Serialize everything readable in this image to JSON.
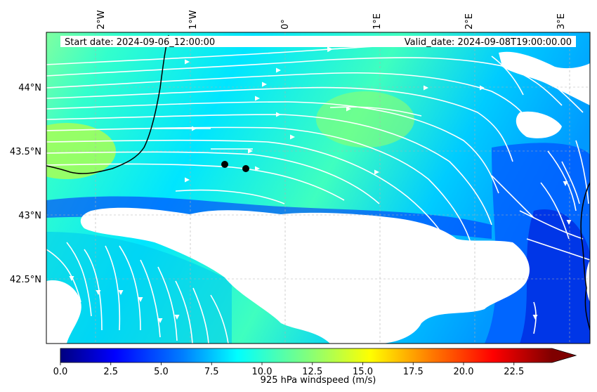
{
  "header": {
    "start_date": "Start date: 2024-09-06_12:00:00",
    "valid_date": "Valid_date: 2024-09-08T19:00:00.00"
  },
  "map": {
    "lon_ticks": [
      "2°W",
      "1°W",
      "0°",
      "1°E",
      "2°E",
      "3°E"
    ],
    "lat_ticks": [
      "44°N",
      "43.5°N",
      "43°N",
      "42.5°N"
    ],
    "markers": [
      {
        "name": "point-a",
        "color": "#000000"
      },
      {
        "name": "point-b",
        "color": "#000000"
      }
    ],
    "streamline_color": "#ffffff",
    "coastline_color": "#000000"
  },
  "colorbar": {
    "label": "925 hPa windspeed (m/s)",
    "ticks": [
      "0.0",
      "2.5",
      "5.0",
      "7.5",
      "10.0",
      "12.5",
      "15.0",
      "17.5",
      "20.0",
      "22.5"
    ],
    "colormap": "jet",
    "extend": "max",
    "colors": [
      "#00007f",
      "#0000ff",
      "#007fff",
      "#00ffff",
      "#7fff7f",
      "#ffff00",
      "#ff7f00",
      "#ff0000",
      "#7f0000"
    ]
  }
}
